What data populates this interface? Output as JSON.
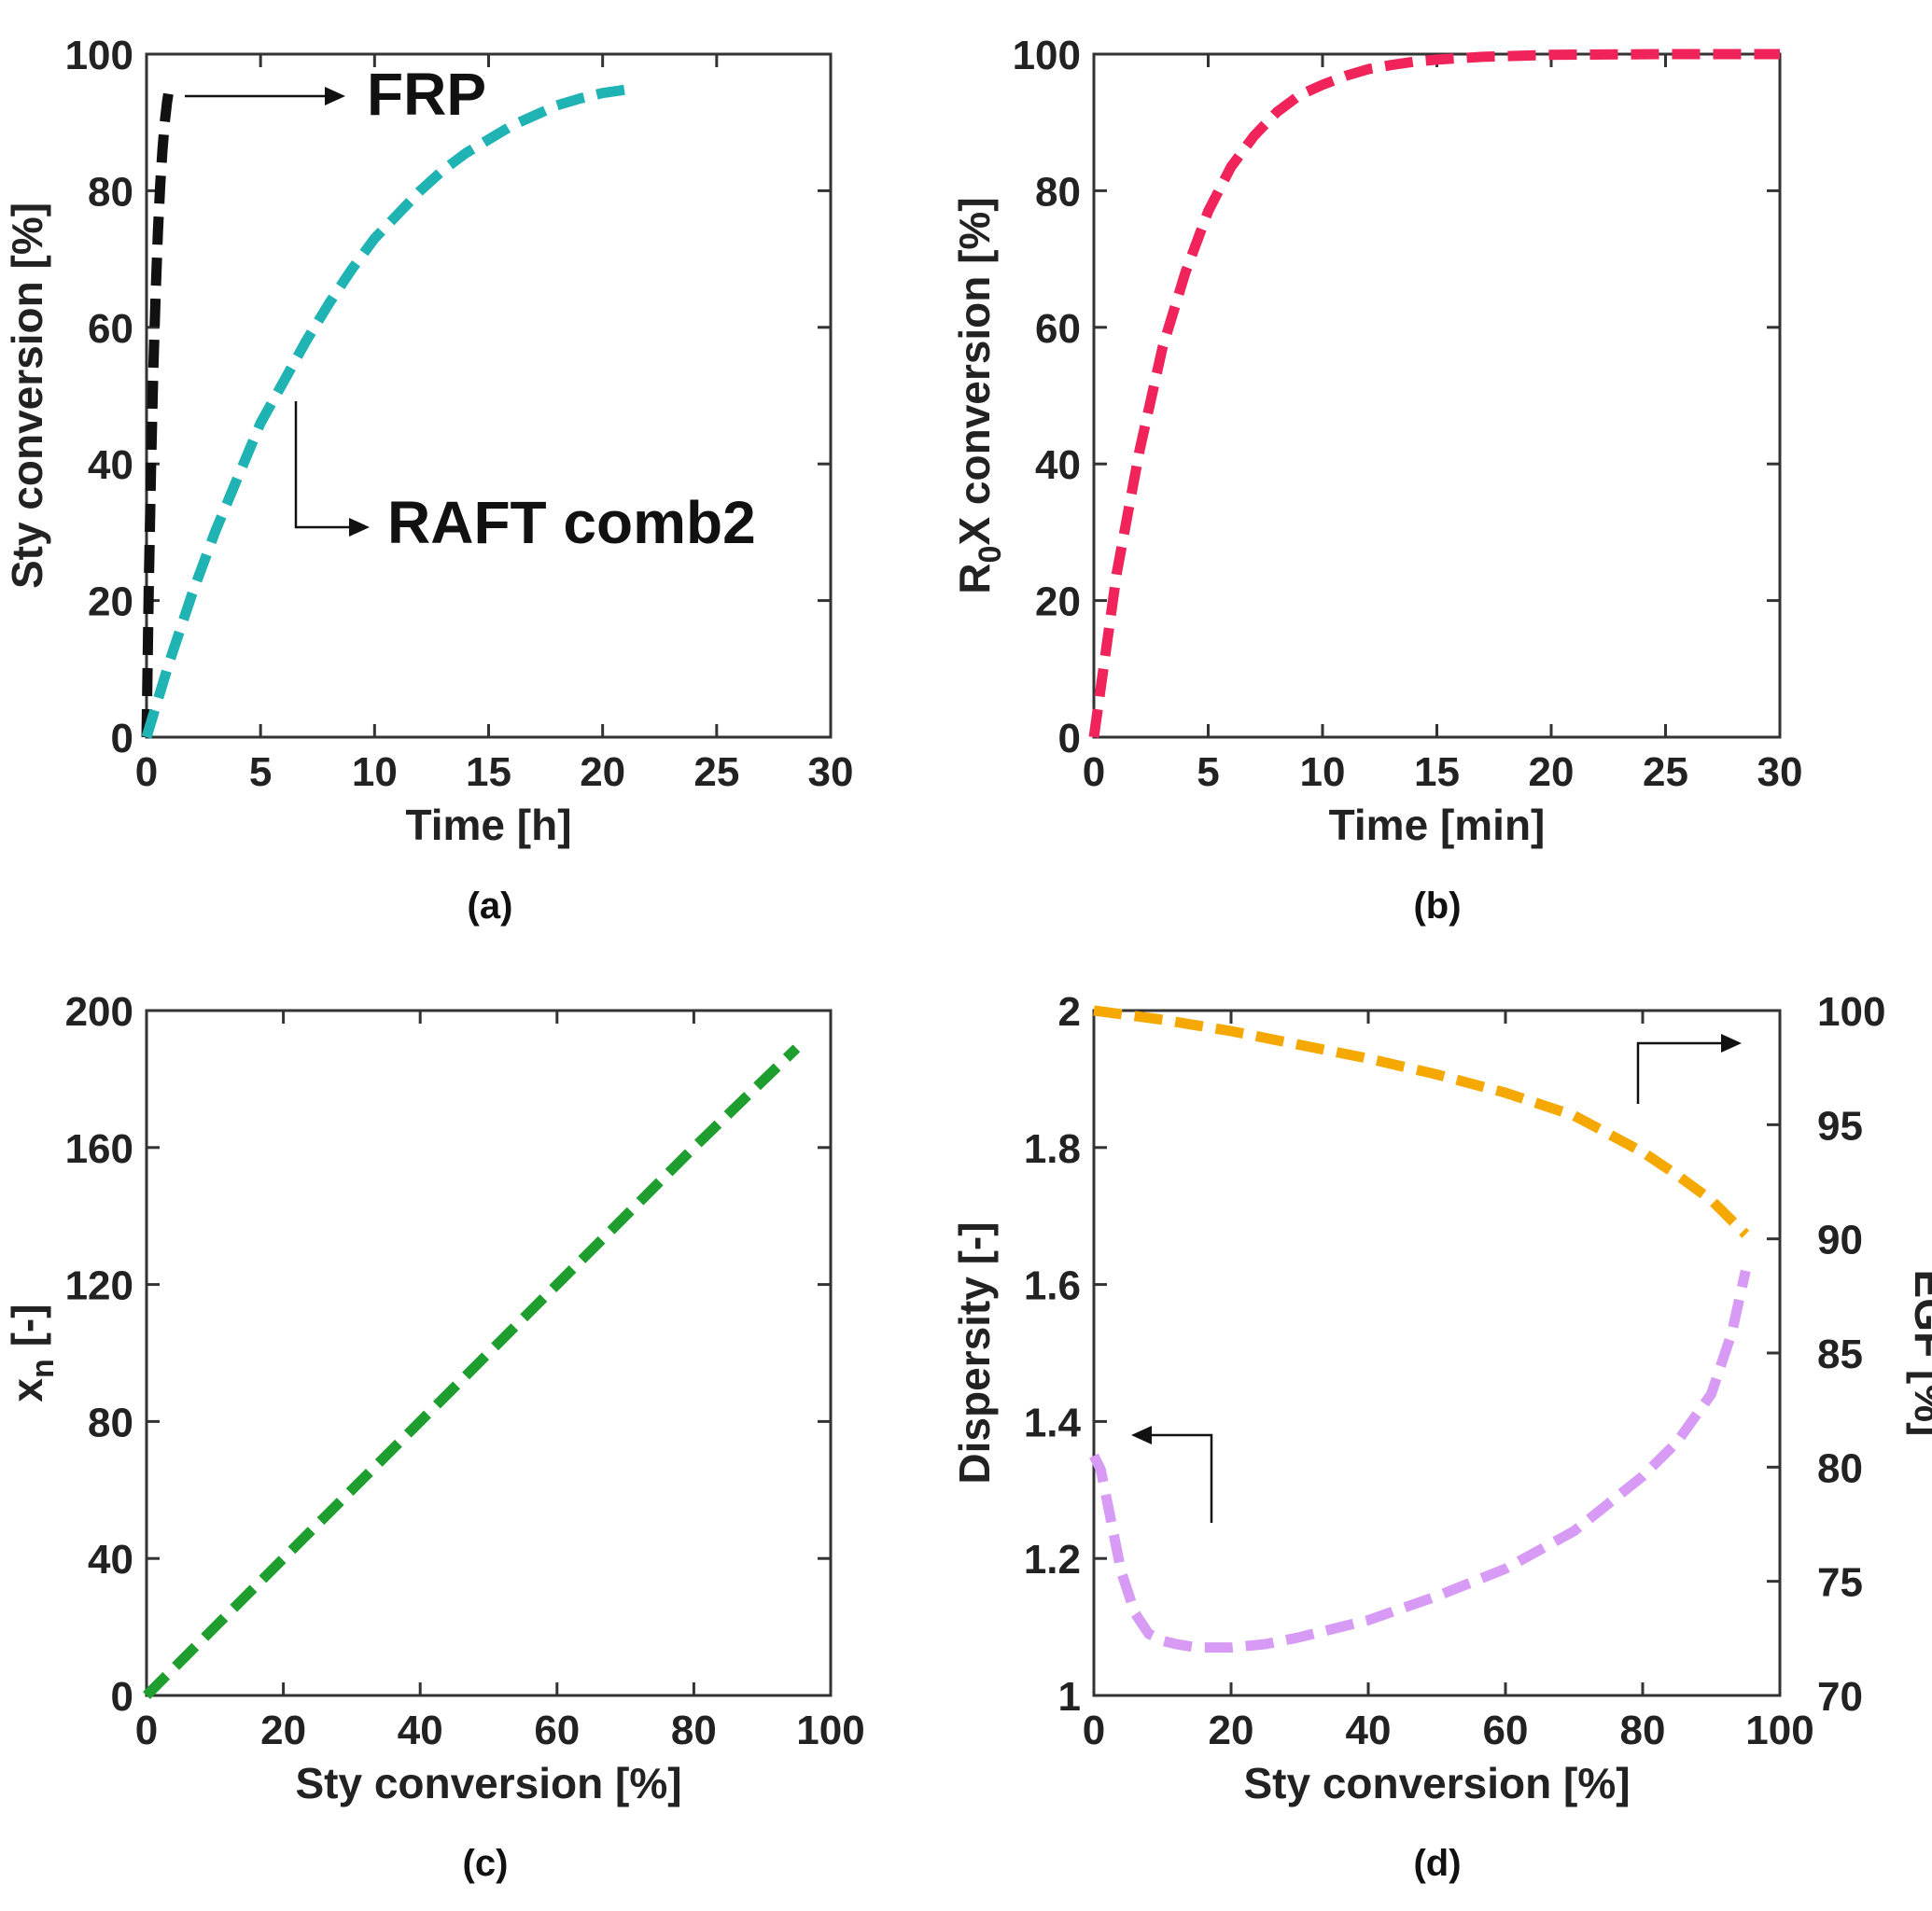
{
  "chart_data": [
    {
      "type": "line",
      "panel": "(a)",
      "xlabel": "Time [h]",
      "ylabel": "Sty conversion [%]",
      "xlim": [
        0,
        30
      ],
      "ylim": [
        0,
        100
      ],
      "xticks": [
        "0",
        "5",
        "10",
        "15",
        "20",
        "25",
        "30"
      ],
      "yticks": [
        "0",
        "20",
        "40",
        "60",
        "80",
        "100"
      ],
      "series": [
        {
          "name": "FRP",
          "color": "#111111",
          "x": [
            0,
            0.1,
            0.2,
            0.3,
            0.4,
            0.5,
            0.6,
            0.7,
            0.8,
            0.9,
            1.0
          ],
          "y": [
            0,
            22,
            40,
            54,
            65,
            74,
            81,
            86,
            90,
            93,
            95
          ]
        },
        {
          "name": "RAFT comb2",
          "color": "#1fb3b3",
          "x": [
            0,
            1,
            2,
            3,
            4,
            5,
            6,
            7,
            8,
            9,
            10,
            11,
            12,
            13,
            14,
            15,
            16,
            17,
            18,
            19,
            20,
            21,
            21.5
          ],
          "y": [
            0,
            11,
            21,
            30,
            38,
            46,
            52,
            58,
            63.5,
            68.5,
            73,
            76.5,
            80,
            83,
            85.5,
            87.5,
            89.5,
            91,
            92.5,
            93.5,
            94.3,
            94.8,
            95
          ]
        }
      ],
      "annotations": [
        "FRP",
        "RAFT comb2"
      ]
    },
    {
      "type": "line",
      "panel": "(b)",
      "xlabel": "Time [min]",
      "ylabel": "R0X conversion [%]",
      "ylabel_parts": {
        "pre": "R",
        "sub": "0",
        "post": "X conversion [%]"
      },
      "xlim": [
        0,
        30
      ],
      "ylim": [
        0,
        100
      ],
      "xticks": [
        "0",
        "5",
        "10",
        "15",
        "20",
        "25",
        "30"
      ],
      "yticks": [
        "0",
        "20",
        "40",
        "60",
        "80",
        "100"
      ],
      "series": [
        {
          "name": "R0X",
          "color": "#f0245a",
          "x": [
            0,
            1,
            2,
            3,
            4,
            5,
            6,
            7,
            8,
            9,
            10,
            11,
            12,
            13,
            14,
            15,
            17,
            20,
            25,
            30
          ],
          "y": [
            0,
            24,
            42,
            57,
            68,
            77,
            83.5,
            88,
            91.5,
            94,
            95.5,
            96.8,
            97.8,
            98.4,
            98.9,
            99.2,
            99.6,
            99.9,
            100,
            100
          ]
        }
      ]
    },
    {
      "type": "line",
      "panel": "(c)",
      "xlabel": "Sty conversion [%]",
      "ylabel": "xn [-]",
      "ylabel_parts": {
        "pre": "x",
        "sub": "n",
        "post": " [-]"
      },
      "xlim": [
        0,
        100
      ],
      "ylim": [
        0,
        200
      ],
      "xticks": [
        "0",
        "20",
        "40",
        "60",
        "80",
        "100"
      ],
      "yticks": [
        "0",
        "40",
        "80",
        "120",
        "160",
        "200"
      ],
      "series": [
        {
          "name": "xn",
          "color": "#1e9e2e",
          "x": [
            0,
            20,
            40,
            60,
            80,
            95
          ],
          "y": [
            0,
            40,
            80,
            120,
            160,
            189
          ]
        }
      ]
    },
    {
      "type": "line",
      "panel": "(d)",
      "xlabel": "Sty conversion [%]",
      "ylabel": "Dispersity [-]",
      "ylabel_right": "EGF [%]",
      "xlim": [
        0,
        100
      ],
      "ylim": [
        1,
        2
      ],
      "ylim_right": [
        70,
        100
      ],
      "xticks": [
        "0",
        "20",
        "40",
        "60",
        "80",
        "100"
      ],
      "yticks": [
        "1",
        "1.2",
        "1.4",
        "1.6",
        "1.8",
        "2"
      ],
      "yticks_right": [
        "70",
        "75",
        "80",
        "85",
        "90",
        "95",
        "100"
      ],
      "series": [
        {
          "name": "EGF",
          "axis": "right",
          "color": "#f5a800",
          "x": [
            0,
            10,
            20,
            30,
            40,
            50,
            60,
            70,
            80,
            85,
            90,
            93,
            95
          ],
          "y": [
            100,
            99.6,
            99.1,
            98.5,
            97.9,
            97.2,
            96.4,
            95.4,
            93.8,
            92.8,
            91.7,
            90.8,
            90.2
          ]
        },
        {
          "name": "Dispersity",
          "axis": "left",
          "color": "#d79af5",
          "x": [
            0,
            1,
            2,
            4,
            6,
            8,
            10,
            12,
            15,
            18,
            20,
            25,
            30,
            40,
            50,
            60,
            70,
            80,
            85,
            90,
            93,
            95
          ],
          "y": [
            1.35,
            1.33,
            1.28,
            1.18,
            1.12,
            1.09,
            1.08,
            1.075,
            1.07,
            1.07,
            1.07,
            1.075,
            1.085,
            1.11,
            1.145,
            1.185,
            1.24,
            1.32,
            1.37,
            1.44,
            1.53,
            1.62
          ]
        }
      ]
    }
  ]
}
